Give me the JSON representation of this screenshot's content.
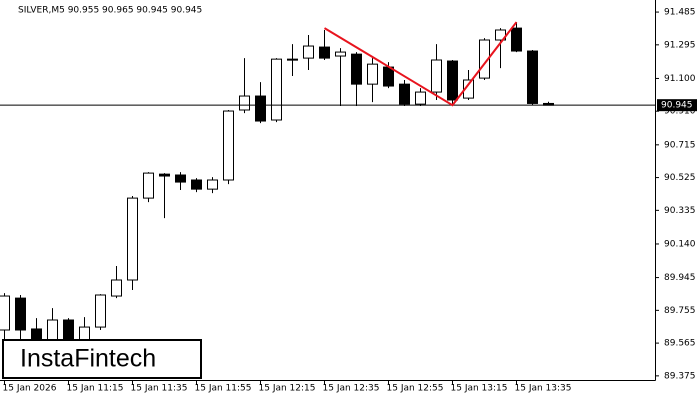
{
  "chart_data": {
    "type": "candlestick",
    "title": "SILVER,M5  90.955 90.965 90.945 90.945",
    "watermark": "InstaFintech",
    "categories": [
      "15 Jan 2026",
      null,
      null,
      null,
      "15 Jan 11:15",
      null,
      null,
      null,
      "15 Jan 11:35",
      null,
      null,
      null,
      "15 Jan 11:55",
      null,
      null,
      null,
      "15 Jan 12:15",
      null,
      null,
      null,
      "15 Jan 12:35",
      null,
      null,
      null,
      "15 Jan 12:55",
      null,
      null,
      null,
      "15 Jan 13:15",
      null,
      null,
      null,
      "15 Jan 13:35",
      null,
      null
    ],
    "open": [
      89.641,
      89.826,
      89.647,
      89.554,
      89.699,
      89.554,
      89.658,
      89.838,
      89.931,
      90.406,
      90.545,
      90.54,
      90.511,
      90.458,
      90.511,
      90.917,
      90.998,
      90.859,
      91.212,
      91.218,
      91.282,
      91.23,
      91.241,
      91.067,
      91.166,
      91.067,
      90.951,
      91.021,
      91.201,
      90.986,
      91.102,
      91.323,
      91.392,
      91.259,
      90.955
    ],
    "high": [
      89.855,
      89.844,
      89.71,
      89.768,
      89.71,
      89.716,
      89.849,
      90.012,
      90.418,
      90.557,
      90.551,
      90.557,
      90.522,
      90.528,
      90.917,
      91.218,
      91.079,
      91.218,
      91.299,
      91.352,
      91.381,
      91.276,
      91.253,
      91.218,
      91.195,
      91.091,
      91.044,
      91.299,
      91.207,
      91.149,
      91.334,
      91.392,
      91.427,
      91.265,
      90.965
    ],
    "low": [
      89.583,
      89.583,
      89.525,
      89.525,
      89.554,
      89.525,
      89.641,
      89.826,
      89.873,
      90.383,
      90.29,
      90.453,
      90.441,
      90.435,
      90.487,
      90.899,
      90.841,
      90.847,
      91.114,
      91.149,
      91.207,
      90.94,
      90.94,
      90.963,
      91.044,
      90.94,
      90.94,
      90.975,
      90.94,
      90.975,
      91.091,
      91.16,
      91.253,
      90.945,
      90.945
    ],
    "close": [
      89.838,
      89.641,
      89.554,
      89.699,
      89.583,
      89.658,
      89.844,
      89.931,
      90.406,
      90.551,
      90.534,
      90.499,
      90.458,
      90.511,
      90.911,
      90.998,
      90.853,
      91.212,
      91.207,
      91.288,
      91.218,
      91.253,
      91.067,
      91.183,
      91.056,
      90.951,
      91.021,
      91.207,
      90.975,
      91.091,
      91.323,
      91.381,
      91.259,
      90.955,
      90.945
    ],
    "current_price": 90.945,
    "pattern": {
      "color": "#e8141e",
      "points": [
        {
          "index": 20,
          "price": 91.392
        },
        {
          "index": 28,
          "price": 90.945
        },
        {
          "index": 32,
          "price": 91.427
        }
      ]
    },
    "ylim": [
      89.351,
      91.555
    ],
    "yticks": [
      91.485,
      91.295,
      {
        "value": 91.1,
        "label": "91.100"
      },
      {
        "value": 90.91,
        "label": "90.910"
      },
      90.715,
      90.525,
      90.335,
      {
        "value": 90.14,
        "label": "90.140"
      },
      89.945,
      89.755,
      89.565,
      89.375
    ]
  }
}
